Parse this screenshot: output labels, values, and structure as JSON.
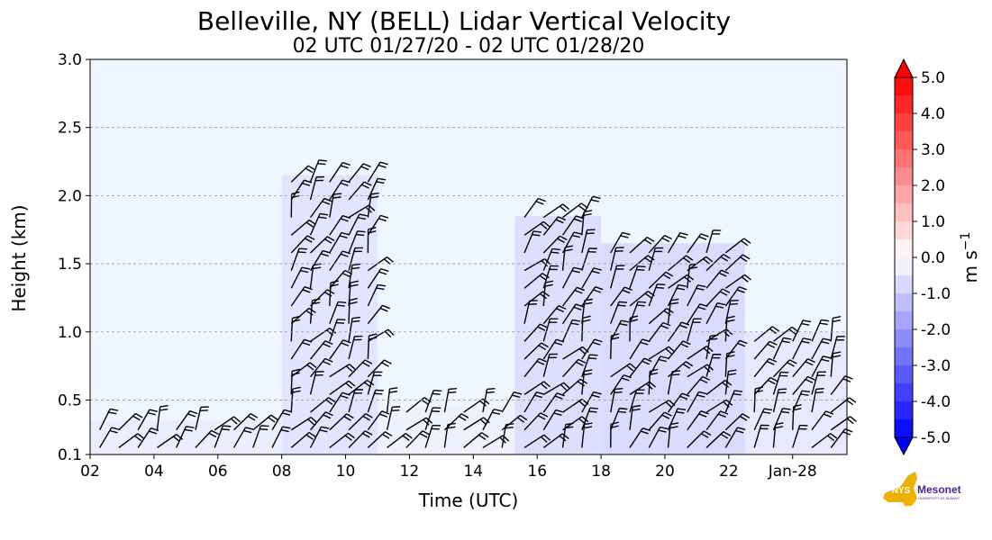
{
  "chart_data": {
    "type": "heatmap",
    "title": "Belleville, NY (BELL) Lidar Vertical Velocity",
    "subtitle": "02 UTC 01/27/20 - 02 UTC 01/28/20",
    "xlabel": "Time (UTC)",
    "ylabel": "Height (km)",
    "x_tick_labels": [
      "02",
      "04",
      "06",
      "08",
      "10",
      "12",
      "14",
      "16",
      "18",
      "20",
      "22",
      "Jan-28"
    ],
    "x_range": [
      2,
      25.7
    ],
    "y_ticks": [
      0.1,
      0.5,
      1.0,
      1.5,
      2.0,
      2.5,
      3.0
    ],
    "y_tick_labels": [
      "0.1",
      "0.5",
      "1.0",
      "1.5",
      "2.0",
      "2.5",
      "3.0"
    ],
    "ylim": [
      0.1,
      3.0
    ],
    "grid": "horizontal dashed",
    "colorbar": {
      "label": "m s$^{-1}$",
      "label_text": "m s",
      "label_exp": "−1",
      "range": [
        -5.0,
        5.0
      ],
      "tick_labels": [
        "5.0",
        "4.0",
        "3.0",
        "2.0",
        "1.0",
        "0.0",
        "-1.0",
        "-2.0",
        "-3.0",
        "-4.0",
        "-5.0"
      ],
      "low_color": "#0000ff",
      "mid_color": "#ffffff",
      "high_color": "#ff0000",
      "extend": "both"
    },
    "background_value_color": "#eef7ff",
    "data_regions": [
      {
        "t0": 2.0,
        "t1": 8.0,
        "h0": 0.1,
        "h1": 0.35,
        "velocity": -0.4
      },
      {
        "t0": 8.0,
        "t1": 11.0,
        "h0": 0.1,
        "h1": 2.15,
        "velocity": -0.6
      },
      {
        "t0": 11.0,
        "t1": 15.3,
        "h0": 0.1,
        "h1": 0.45,
        "velocity": -0.3
      },
      {
        "t0": 15.3,
        "t1": 18.0,
        "h0": 0.1,
        "h1": 1.85,
        "velocity": -0.7
      },
      {
        "t0": 18.0,
        "t1": 22.5,
        "h0": 0.1,
        "h1": 1.65,
        "velocity": -0.8
      },
      {
        "t0": 22.5,
        "t1": 25.7,
        "h0": 0.1,
        "h1": 1.0,
        "velocity": -0.5
      }
    ]
  },
  "logo": {
    "text_main": "Mesonet",
    "text_nys": "NYS",
    "text_sub": "UNIVERSITY AT ALBANY",
    "gold": "#f0b000",
    "purple": "#4b2683"
  }
}
